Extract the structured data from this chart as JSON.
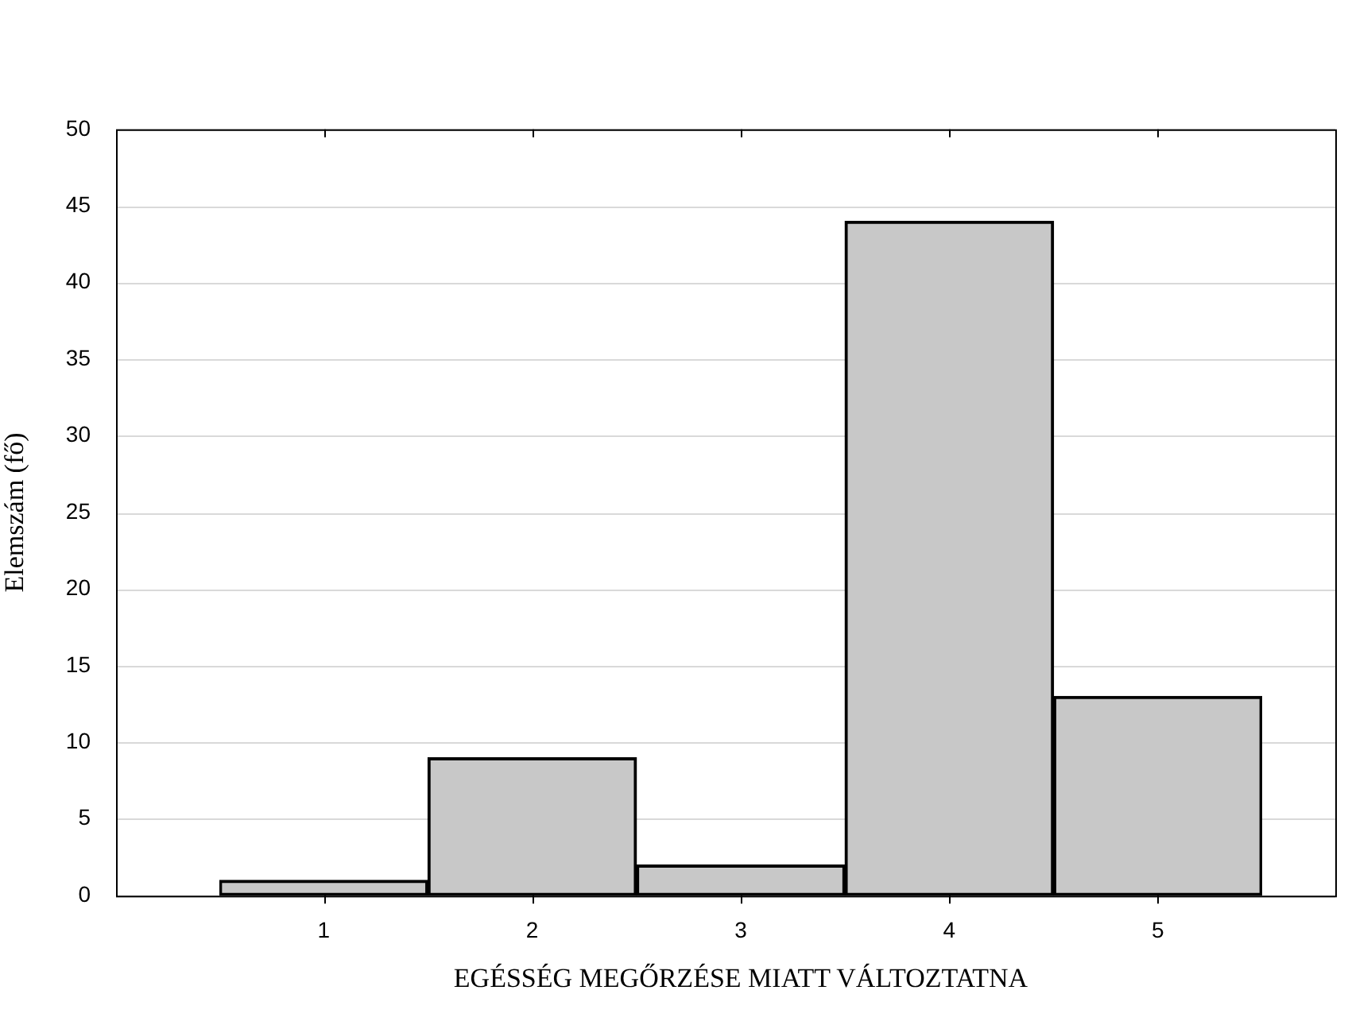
{
  "chart_data": {
    "type": "bar",
    "xlabel": "EGÉSSÉG MEGŐRZÉSE MIATT VÁLTOZTATNA",
    "ylabel": "Elemszám (fő)",
    "categories": [
      "1",
      "2",
      "3",
      "4",
      "5"
    ],
    "values": [
      1,
      9,
      2,
      44,
      13
    ],
    "color": "#c8c8c8",
    "ylim": [
      0,
      50
    ],
    "yticks": [
      0,
      5,
      10,
      15,
      20,
      25,
      30,
      35,
      40,
      45,
      50
    ],
    "grid": "y",
    "legend": false
  }
}
